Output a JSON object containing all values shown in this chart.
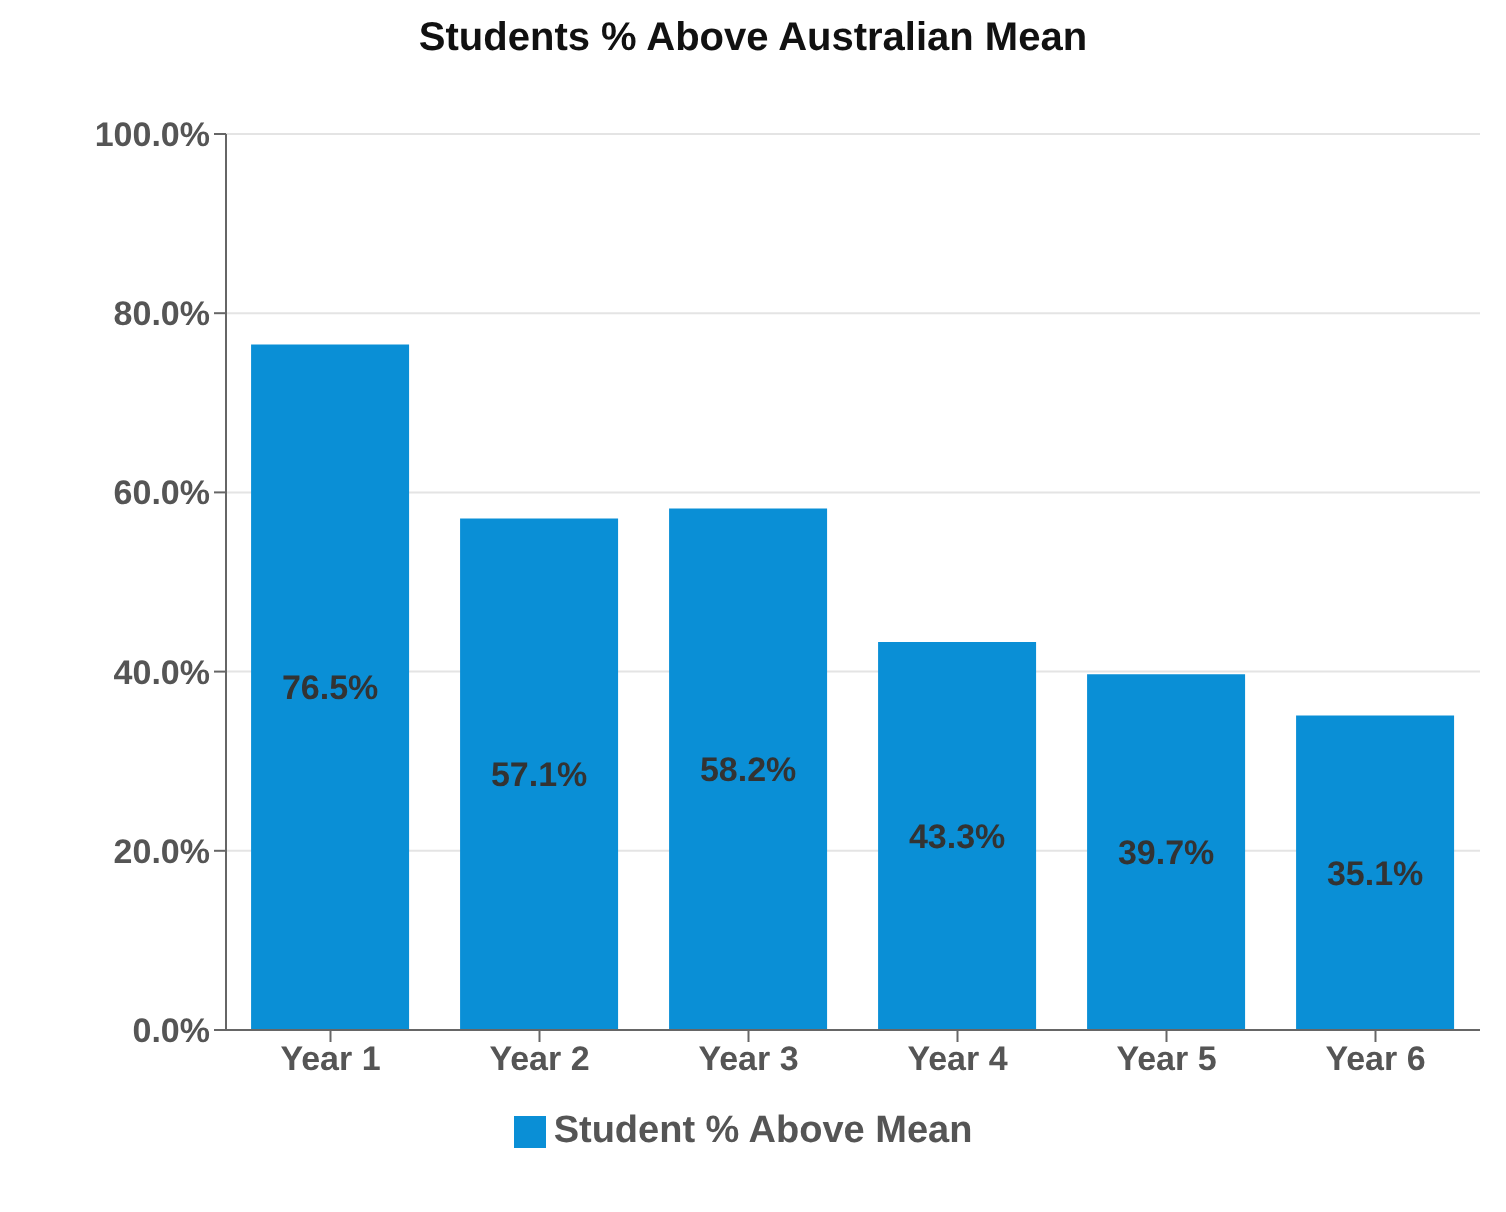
{
  "chart_data": {
    "type": "bar",
    "title": "Students % Above Australian Mean",
    "categories": [
      "Year 1",
      "Year 2",
      "Year 3",
      "Year 4",
      "Year 5",
      "Year 6"
    ],
    "series": [
      {
        "name": "Student % Above Mean",
        "color": "#0a8fd6",
        "values": [
          76.5,
          57.1,
          58.2,
          43.3,
          39.7,
          35.1
        ],
        "value_labels": [
          "76.5%",
          "57.1%",
          "58.2%",
          "43.3%",
          "39.7%",
          "35.1%"
        ]
      }
    ],
    "ylim": [
      0,
      100
    ],
    "yticks": [
      {
        "value": 0,
        "label": "0.0%"
      },
      {
        "value": 20,
        "label": "20.0%"
      },
      {
        "value": 40,
        "label": "40.0%"
      },
      {
        "value": 60,
        "label": "60.0%"
      },
      {
        "value": 80,
        "label": "80.0%"
      },
      {
        "value": 100,
        "label": "100.0%"
      }
    ],
    "grid": "y",
    "legend": "bottom"
  }
}
